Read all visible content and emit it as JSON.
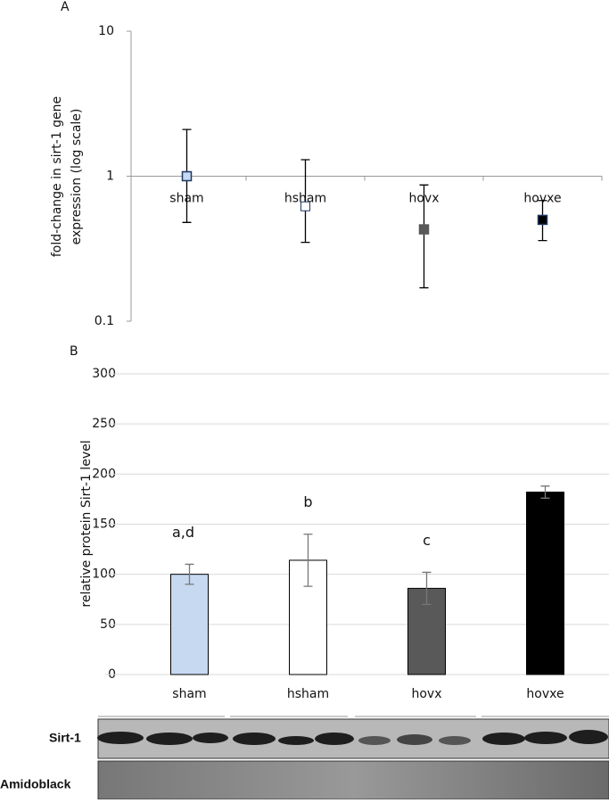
{
  "chart_data": [
    {
      "type": "dot",
      "panel": "A",
      "log_scale": true,
      "ylabel": [
        "fold-change in sirt-1 gene",
        "expression (log scale)"
      ],
      "categories": [
        "sham",
        "hsham",
        "hovx",
        "hovxe"
      ],
      "values": [
        1.0,
        0.62,
        0.43,
        0.5
      ],
      "error_upper": [
        2.1,
        1.3,
        0.87,
        0.68
      ],
      "error_lower": [
        0.48,
        0.35,
        0.17,
        0.36
      ],
      "colors": [
        "#c6d9f1",
        "#ffffff",
        "#595959",
        "#000000"
      ],
      "ylim": [
        0.1,
        10
      ],
      "yticks": [
        0.1,
        1,
        10
      ]
    },
    {
      "type": "bar",
      "panel": "B",
      "ylabel": [
        "relative protein Sirt-1 level"
      ],
      "categories": [
        "sham",
        "hsham",
        "hovx",
        "hovxe"
      ],
      "values": [
        100,
        114,
        86,
        182
      ],
      "errors": [
        10,
        26,
        16,
        6
      ],
      "bar_labels": [
        "a,d",
        "b",
        "c",
        null
      ],
      "colors": [
        "#c6d9f1",
        "#ffffff",
        "#595959",
        "#000000"
      ],
      "ylim": [
        0,
        300
      ],
      "yticks": [
        0,
        50,
        100,
        150,
        200,
        250,
        300
      ],
      "grid": true
    }
  ],
  "blot_labels": [
    "Sirt-1",
    "Amidoblack"
  ]
}
